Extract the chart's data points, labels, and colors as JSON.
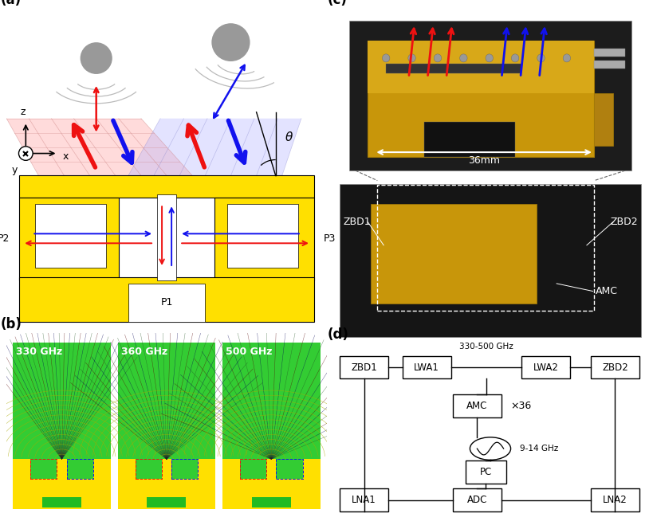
{
  "panel_a_label": "(a)",
  "panel_b_label": "(b)",
  "panel_c_label": "(c)",
  "panel_d_label": "(d)",
  "freq_labels": [
    "330 GHz",
    "360 GHz",
    "500 GHz"
  ],
  "amc_label": "AMC",
  "scale_label": "36mm",
  "theta_label": "θ",
  "d_freq_label": "330-500 GHz",
  "d_mult_label": "×36",
  "d_osc_label": "9-14 GHz",
  "yellow_color": "#FFE000",
  "dark_yellow": "#C8960A",
  "red_color": "#EE1111",
  "blue_color": "#1111EE",
  "green_color": "#00BB00",
  "bg_color": "#FFFFFF",
  "gray_circle": "#999999",
  "dark_bg": "#1A1A1A"
}
